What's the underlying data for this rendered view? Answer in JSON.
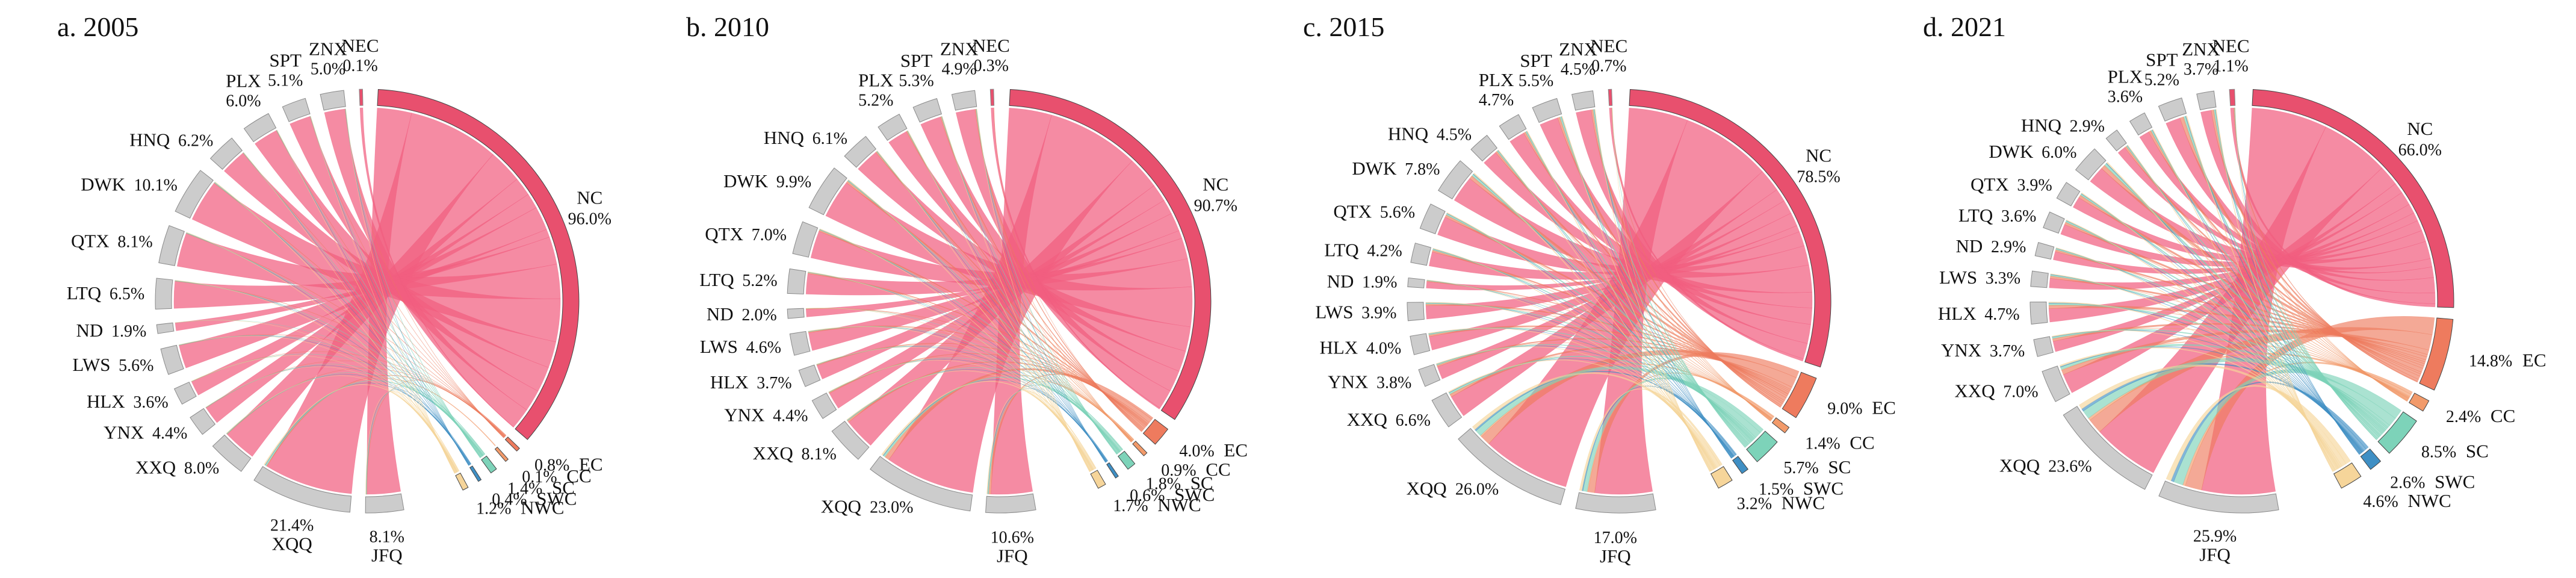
{
  "figure": {
    "description_visible": false
  },
  "colors": {
    "NC": "#E8506E",
    "EC": "#EE7B5E",
    "CC": "#F29A6A",
    "SC": "#7DD3B9",
    "SWC": "#3F8FC4",
    "NWC": "#F6D59A",
    "mining": "#CCCCCC",
    "mining_stroke": "#8A8A8A",
    "band_NC": "#F15E80"
  },
  "chart_data": [
    {
      "type": "chord",
      "title": "a. 2005",
      "sources": [
        {
          "name": "NEC",
          "pct": "0.1%",
          "value": 0.1
        },
        {
          "name": "ZNX",
          "pct": "5.0%",
          "value": 5.0
        },
        {
          "name": "SPT",
          "pct": "5.1%",
          "value": 5.1
        },
        {
          "name": "PLX",
          "pct": "6.0%",
          "value": 6.0
        },
        {
          "name": "HNQ",
          "pct": "6.2%",
          "value": 6.2
        },
        {
          "name": "DWK",
          "pct": "10.1%",
          "value": 10.1
        },
        {
          "name": "QTX",
          "pct": "8.1%",
          "value": 8.1
        },
        {
          "name": "LTQ",
          "pct": "6.5%",
          "value": 6.5
        },
        {
          "name": "ND",
          "pct": "1.9%",
          "value": 1.9
        },
        {
          "name": "LWS",
          "pct": "5.6%",
          "value": 5.6
        },
        {
          "name": "HLX",
          "pct": "3.6%",
          "value": 3.6
        },
        {
          "name": "YNX",
          "pct": "4.4%",
          "value": 4.4
        },
        {
          "name": "XXQ",
          "pct": "8.0%",
          "value": 8.0
        },
        {
          "name": "XQQ",
          "pct": "21.4%",
          "value": 21.4
        },
        {
          "name": "JFQ",
          "pct": "8.1%",
          "value": 8.1
        }
      ],
      "regions": [
        {
          "name": "NC",
          "pct": "96.0%",
          "value": 96.0
        },
        {
          "name": "EC",
          "pct": "0.8%",
          "value": 0.8
        },
        {
          "name": "CC",
          "pct": "0.1%",
          "value": 0.1
        },
        {
          "name": "SC",
          "pct": "1.4%",
          "value": 1.4
        },
        {
          "name": "SWC",
          "pct": "0.4%",
          "value": 0.4
        },
        {
          "name": "NWC",
          "pct": "1.2%",
          "value": 1.2
        }
      ]
    },
    {
      "type": "chord",
      "title": "b. 2010",
      "sources": [
        {
          "name": "NEC",
          "pct": "0.3%",
          "value": 0.3
        },
        {
          "name": "ZNX",
          "pct": "4.9%",
          "value": 4.9
        },
        {
          "name": "SPT",
          "pct": "5.3%",
          "value": 5.3
        },
        {
          "name": "PLX",
          "pct": "5.2%",
          "value": 5.2
        },
        {
          "name": "HNQ",
          "pct": "6.1%",
          "value": 6.1
        },
        {
          "name": "DWK",
          "pct": "9.9%",
          "value": 9.9
        },
        {
          "name": "QTX",
          "pct": "7.0%",
          "value": 7.0
        },
        {
          "name": "LTQ",
          "pct": "5.2%",
          "value": 5.2
        },
        {
          "name": "ND",
          "pct": "2.0%",
          "value": 2.0
        },
        {
          "name": "LWS",
          "pct": "4.6%",
          "value": 4.6
        },
        {
          "name": "HLX",
          "pct": "3.7%",
          "value": 3.7
        },
        {
          "name": "YNX",
          "pct": "4.4%",
          "value": 4.4
        },
        {
          "name": "XXQ",
          "pct": "8.1%",
          "value": 8.1
        },
        {
          "name": "XQQ",
          "pct": "23.0%",
          "value": 23.0
        },
        {
          "name": "JFQ",
          "pct": "10.6%",
          "value": 10.6
        }
      ],
      "regions": [
        {
          "name": "NC",
          "pct": "90.7%",
          "value": 90.7
        },
        {
          "name": "EC",
          "pct": "4.0%",
          "value": 4.0
        },
        {
          "name": "CC",
          "pct": "0.9%",
          "value": 0.9
        },
        {
          "name": "SC",
          "pct": "1.8%",
          "value": 1.8
        },
        {
          "name": "SWC",
          "pct": "0.6%",
          "value": 0.6
        },
        {
          "name": "NWC",
          "pct": "1.7%",
          "value": 1.7
        }
      ]
    },
    {
      "type": "chord",
      "title": "c. 2015",
      "sources": [
        {
          "name": "NEC",
          "pct": "0.7%",
          "value": 0.7
        },
        {
          "name": "ZNX",
          "pct": "4.5%",
          "value": 4.5
        },
        {
          "name": "SPT",
          "pct": "5.5%",
          "value": 5.5
        },
        {
          "name": "PLX",
          "pct": "4.7%",
          "value": 4.7
        },
        {
          "name": "HNQ",
          "pct": "4.5%",
          "value": 4.5
        },
        {
          "name": "DWK",
          "pct": "7.8%",
          "value": 7.8
        },
        {
          "name": "QTX",
          "pct": "5.6%",
          "value": 5.6
        },
        {
          "name": "LTQ",
          "pct": "4.2%",
          "value": 4.2
        },
        {
          "name": "ND",
          "pct": "1.9%",
          "value": 1.9
        },
        {
          "name": "LWS",
          "pct": "3.9%",
          "value": 3.9
        },
        {
          "name": "HLX",
          "pct": "4.0%",
          "value": 4.0
        },
        {
          "name": "YNX",
          "pct": "3.8%",
          "value": 3.8
        },
        {
          "name": "XXQ",
          "pct": "6.6%",
          "value": 6.6
        },
        {
          "name": "XQQ",
          "pct": "26.0%",
          "value": 26.0
        },
        {
          "name": "JFQ",
          "pct": "17.0%",
          "value": 17.0
        }
      ],
      "regions": [
        {
          "name": "NC",
          "pct": "78.5%",
          "value": 78.5
        },
        {
          "name": "EC",
          "pct": "9.0%",
          "value": 9.0
        },
        {
          "name": "CC",
          "pct": "1.4%",
          "value": 1.4
        },
        {
          "name": "SC",
          "pct": "5.7%",
          "value": 5.7
        },
        {
          "name": "SWC",
          "pct": "1.5%",
          "value": 1.5
        },
        {
          "name": "NWC",
          "pct": "3.2%",
          "value": 3.2
        }
      ]
    },
    {
      "type": "chord",
      "title": "d. 2021",
      "sources": [
        {
          "name": "NEC",
          "pct": "1.1%",
          "value": 1.1
        },
        {
          "name": "ZNX",
          "pct": "3.7%",
          "value": 3.7
        },
        {
          "name": "SPT",
          "pct": "5.2%",
          "value": 5.2
        },
        {
          "name": "PLX",
          "pct": "3.6%",
          "value": 3.6
        },
        {
          "name": "HNQ",
          "pct": "2.9%",
          "value": 2.9
        },
        {
          "name": "DWK",
          "pct": "6.0%",
          "value": 6.0
        },
        {
          "name": "QTX",
          "pct": "3.9%",
          "value": 3.9
        },
        {
          "name": "LTQ",
          "pct": "3.6%",
          "value": 3.6
        },
        {
          "name": "ND",
          "pct": "2.9%",
          "value": 2.9
        },
        {
          "name": "LWS",
          "pct": "3.3%",
          "value": 3.3
        },
        {
          "name": "HLX",
          "pct": "4.7%",
          "value": 4.7
        },
        {
          "name": "YNX",
          "pct": "3.7%",
          "value": 3.7
        },
        {
          "name": "XXQ",
          "pct": "7.0%",
          "value": 7.0
        },
        {
          "name": "XQQ",
          "pct": "23.6%",
          "value": 23.6
        },
        {
          "name": "JFQ",
          "pct": "25.9%",
          "value": 25.9
        }
      ],
      "regions": [
        {
          "name": "NC",
          "pct": "66.0%",
          "value": 66.0
        },
        {
          "name": "EC",
          "pct": "14.8%",
          "value": 14.8
        },
        {
          "name": "CC",
          "pct": "2.4%",
          "value": 2.4
        },
        {
          "name": "SC",
          "pct": "8.5%",
          "value": 8.5
        },
        {
          "name": "SWC",
          "pct": "2.6%",
          "value": 2.6
        },
        {
          "name": "NWC",
          "pct": "4.6%",
          "value": 4.6
        }
      ]
    }
  ]
}
